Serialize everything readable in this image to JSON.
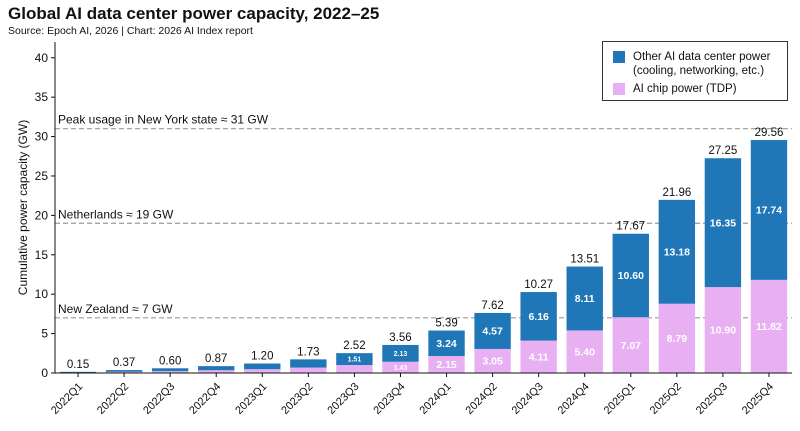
{
  "chart_data": {
    "type": "bar",
    "stacked": true,
    "title": "Global AI data center power capacity, 2022–25",
    "subtitle": "Source: Epoch AI, 2026 | Chart: 2026 AI Index report",
    "xlabel": "",
    "ylabel": "Cumulative power capacity (GW)",
    "ylim": [
      0,
      42
    ],
    "yticks": [
      0,
      5,
      10,
      15,
      20,
      25,
      30,
      35,
      40
    ],
    "categories": [
      "2022Q1",
      "2022Q2",
      "2022Q3",
      "2022Q4",
      "2023Q1",
      "2023Q2",
      "2023Q3",
      "2023Q4",
      "2024Q1",
      "2024Q2",
      "2024Q3",
      "2024Q4",
      "2025Q1",
      "2025Q2",
      "2025Q3",
      "2025Q4"
    ],
    "series": [
      {
        "name": "AI chip power (TDP)",
        "color": "#e8b0f2",
        "values": [
          0.06,
          0.15,
          0.24,
          0.35,
          0.48,
          0.69,
          1.01,
          1.43,
          2.15,
          3.05,
          4.11,
          5.4,
          7.07,
          8.79,
          10.9,
          11.82
        ],
        "labels": [
          "",
          "",
          "",
          "",
          "",
          "",
          "",
          "1.43",
          "2.15",
          "3.05",
          "4.11",
          "5.40",
          "7.07",
          "8.79",
          "10.90",
          "11.82"
        ]
      },
      {
        "name": "Other AI data center power (cooling, networking, etc.)",
        "color": "#1f77b8",
        "values": [
          0.09,
          0.22,
          0.36,
          0.52,
          0.72,
          1.04,
          1.51,
          2.13,
          3.24,
          4.57,
          6.16,
          8.11,
          10.6,
          13.18,
          16.35,
          17.74
        ],
        "labels": [
          "",
          "",
          "",
          "",
          "",
          "",
          "1.51",
          "2.13",
          "3.24",
          "4.57",
          "6.16",
          "8.11",
          "10.60",
          "13.18",
          "16.35",
          "17.74"
        ]
      }
    ],
    "totals": [
      0.15,
      0.37,
      0.6,
      0.87,
      1.2,
      1.73,
      2.52,
      3.56,
      5.39,
      7.62,
      10.27,
      13.51,
      17.67,
      21.96,
      27.25,
      29.56
    ],
    "total_labels": [
      "0.15",
      "0.37",
      "0.60",
      "0.87",
      "1.20",
      "1.73",
      "2.52",
      "3.56",
      "5.39",
      "7.62",
      "10.27",
      "13.51",
      "17.67",
      "21.96",
      "27.25",
      "29.56"
    ],
    "reference_lines": [
      {
        "value": 31,
        "label": "Peak usage in New York state ≈ 31 GW"
      },
      {
        "value": 19,
        "label": "Netherlands ≈ 19 GW"
      },
      {
        "value": 7,
        "label": "New Zealand ≈ 7 GW"
      }
    ],
    "legend": {
      "placement": "top-right",
      "items": [
        {
          "line1": "Other AI data center power",
          "line2": "(cooling, networking, etc.)",
          "color": "#1f77b8"
        },
        {
          "line1": "AI chip power (TDP)",
          "line2": "",
          "color": "#e8b0f2"
        }
      ]
    },
    "grid": false
  }
}
